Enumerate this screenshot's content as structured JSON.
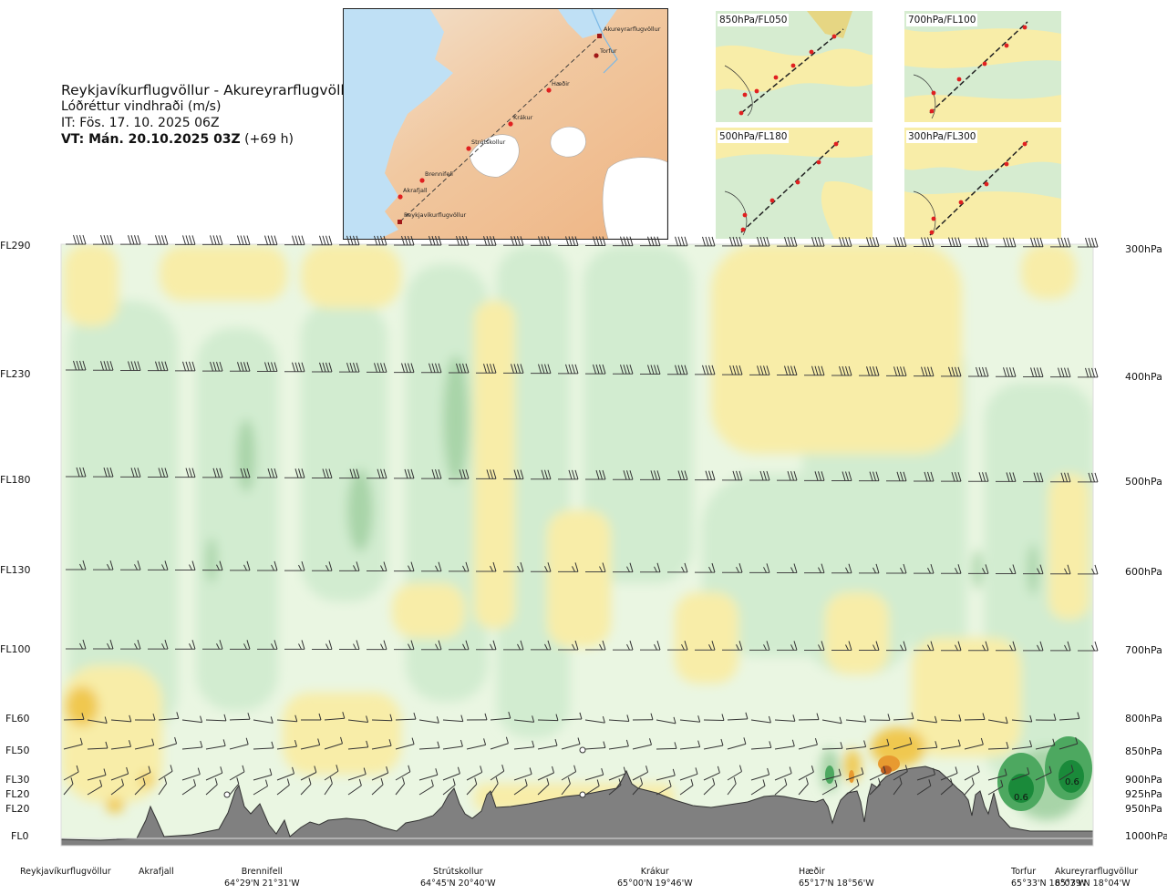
{
  "header": {
    "route": "Reykjavíkurflugvöllur - Akureyrarflugvöllur",
    "variable": "Lóðréttur vindhraði (m/s)",
    "issue_time": "IT: Fös. 17. 10. 2025 06Z",
    "valid_time_label": "VT: Mán. 20.10.2025 03Z",
    "valid_time_offset": "(+69 h)"
  },
  "route_map": {
    "waypoints": [
      "Akureyrarflugvöllur",
      "Torfur",
      "Hæðir",
      "Krákur",
      "Strútskollur",
      "Brennifell",
      "Akrafjall",
      "Reykjavíkurflugvöllur"
    ]
  },
  "mini_maps": [
    {
      "label": "850hPa/FL050"
    },
    {
      "label": "700hPa/FL100"
    },
    {
      "label": "500hPa/FL180"
    },
    {
      "label": "300hPa/FL300"
    }
  ],
  "colors": {
    "up_weak": "#fff8d8",
    "up_mid": "#f8eda8",
    "up_strong": "#f0c850",
    "up_stronger": "#e89a30",
    "up_max": "#c06020",
    "down_weak": "#eaf6e2",
    "down_mid": "#d2ecd0",
    "down_strong": "#a8d4a8",
    "down_stronger": "#4da860",
    "down_max": "#1a8a3a",
    "terrain": "#808080"
  },
  "chart_data": {
    "type": "heatmap",
    "title": "Reykjavíkurflugvöllur - Akureyrarflugvöllur",
    "subtitle": "Lóðréttur vindhraði (m/s)",
    "y_left_ticks": [
      "FL290",
      "FL230",
      "FL180",
      "FL130",
      "FL100",
      "FL60",
      "FL50",
      "FL30",
      "FL20",
      "FL20",
      "FL0"
    ],
    "y_right_ticks": [
      "300hPa",
      "400hPa",
      "500hPa",
      "600hPa",
      "700hPa",
      "800hPa",
      "850hPa",
      "900hPa",
      "925hPa",
      "950hPa",
      "1000hPa"
    ],
    "x_locations": [
      {
        "name": "Reykjavíkurflugvöllur",
        "coord": ""
      },
      {
        "name": "Akrafjall",
        "coord": ""
      },
      {
        "name": "Brennifell",
        "coord": "64°29'N 21°31'W"
      },
      {
        "name": "Strútskollur",
        "coord": "64°45'N 20°40'W"
      },
      {
        "name": "Krákur",
        "coord": "65°00'N 19°46'W"
      },
      {
        "name": "Hæðir",
        "coord": "65°17'N 18°56'W"
      },
      {
        "name": "Torfur",
        "coord": "65°33'N 18°07'W"
      },
      {
        "name": "Akureyrarflugvöllur",
        "coord": "65°39'N 18°04'W"
      }
    ],
    "contour_labels": [
      "0.6",
      "0.6"
    ]
  }
}
